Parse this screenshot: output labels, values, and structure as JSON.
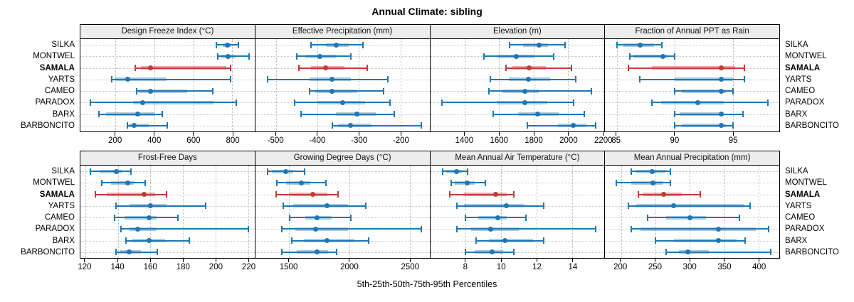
{
  "title": "Annual Climate: sibling",
  "caption": "5th-25th-50th-75th-95th Percentiles",
  "sites": [
    "SILKA",
    "MONTWEL",
    "SAMALA",
    "YARTS",
    "CAMEO",
    "PARADOX",
    "BARX",
    "BARBONCITO"
  ],
  "highlight_site": "SAMALA",
  "colors": {
    "series": "#1f77b4",
    "series_band": "rgba(31,119,180,0.38)",
    "highlight": "#c23b36",
    "highlight_band": "rgba(194,59,54,0.40)",
    "strip_bg": "#ededed",
    "grid": "#c4c4c4"
  },
  "chart_data": {
    "type": "dotplot-percentiles",
    "percentile_labels": [
      "5th",
      "25th",
      "50th",
      "75th",
      "95th"
    ],
    "panels": [
      {
        "title": "Design Freeze Index (°C)",
        "row": 1,
        "domain": [
          20,
          915
        ],
        "ticks": [
          200,
          400,
          600,
          800
        ],
        "values": {
          "SILKA": [
            720,
            750,
            775,
            795,
            830
          ],
          "MONTWEL": [
            725,
            745,
            777,
            815,
            888
          ],
          "SAMALA": [
            300,
            330,
            380,
            770,
            790
          ],
          "YARTS": [
            180,
            200,
            265,
            460,
            790
          ],
          "CAMEO": [
            310,
            320,
            380,
            570,
            700
          ],
          "PARADOX": [
            70,
            290,
            340,
            705,
            820
          ],
          "BARX": [
            115,
            150,
            315,
            400,
            440
          ],
          "BARBONCITO": [
            260,
            270,
            297,
            370,
            465
          ]
        }
      },
      {
        "title": "Effective Precipitation (mm)",
        "row": 1,
        "domain": [
          -550,
          -130
        ],
        "ticks": [
          -500,
          -400,
          -300,
          -200
        ],
        "values": {
          "SILKA": [
            -415,
            -380,
            -355,
            -325,
            -290
          ],
          "MONTWEL": [
            -450,
            -430,
            -395,
            -355,
            -320
          ],
          "SAMALA": [
            -445,
            -415,
            -380,
            -335,
            -280
          ],
          "YARTS": [
            -520,
            -420,
            -365,
            -320,
            -230
          ],
          "CAMEO": [
            -420,
            -405,
            -365,
            -305,
            -240
          ],
          "PARADOX": [
            -455,
            -400,
            -340,
            -285,
            -225
          ],
          "BARX": [
            -440,
            -355,
            -305,
            -260,
            -215
          ],
          "BARBONCITO": [
            -365,
            -350,
            -320,
            -270,
            -150
          ]
        }
      },
      {
        "title": "Elevation (m)",
        "row": 1,
        "domain": [
          1200,
          2210
        ],
        "ticks": [
          1400,
          1600,
          1800,
          2000,
          2200
        ],
        "values": {
          "SILKA": [
            1660,
            1740,
            1830,
            1885,
            1980
          ],
          "MONTWEL": [
            1510,
            1595,
            1700,
            1800,
            1915
          ],
          "SAMALA": [
            1640,
            1675,
            1775,
            1870,
            2020
          ],
          "YARTS": [
            1550,
            1655,
            1770,
            1895,
            2045
          ],
          "CAMEO": [
            1540,
            1620,
            1750,
            1830,
            2135
          ],
          "PARADOX": [
            1270,
            1585,
            1750,
            1880,
            2030
          ],
          "BARX": [
            1565,
            1710,
            1825,
            1945,
            2095
          ],
          "BARBONCITO": [
            1765,
            1940,
            2030,
            2105,
            2160
          ]
        }
      },
      {
        "title": "Fraction of Annual PPT as Rain",
        "row": 1,
        "domain": [
          84,
          99
        ],
        "ticks": [
          85,
          90,
          95
        ],
        "values": {
          "SILKA": [
            85,
            85.6,
            87,
            88.2,
            88.9
          ],
          "MONTWEL": [
            86.1,
            86.5,
            89,
            89.4,
            90
          ],
          "SAMALA": [
            86,
            88,
            94,
            95.2,
            96
          ],
          "YARTS": [
            87,
            90,
            94,
            95,
            96
          ],
          "CAMEO": [
            90,
            90.6,
            94,
            94.4,
            95
          ],
          "PARADOX": [
            88,
            88.8,
            92,
            94.2,
            98
          ],
          "BARX": [
            90,
            90.4,
            94,
            94.2,
            95.9
          ],
          "BARBONCITO": [
            90,
            90.6,
            94,
            94.4,
            95
          ]
        }
      },
      {
        "title": "Frost-Free Days",
        "row": 2,
        "domain": [
          117,
          224
        ],
        "ticks": [
          120,
          140,
          160,
          180,
          200,
          220
        ],
        "values": {
          "SILKA": [
            123,
            129,
            139,
            143,
            148
          ],
          "MONTWEL": [
            130,
            136,
            146,
            150,
            157
          ],
          "SAMALA": [
            126,
            133,
            156,
            163,
            170
          ],
          "YARTS": [
            139,
            147,
            160,
            170,
            194
          ],
          "CAMEO": [
            138,
            144,
            159,
            164,
            177
          ],
          "PARADOX": [
            142,
            147,
            152,
            164,
            220
          ],
          "BARX": [
            145,
            149,
            159,
            169,
            184
          ],
          "BARBONCITO": [
            139,
            141,
            147,
            154,
            164
          ]
        }
      },
      {
        "title": "Growing Degree Days (°C)",
        "row": 2,
        "domain": [
          1220,
          2665
        ],
        "ticks": [
          1500,
          2000,
          2500
        ],
        "values": {
          "SILKA": [
            1320,
            1355,
            1475,
            1535,
            1630
          ],
          "MONTWEL": [
            1400,
            1475,
            1600,
            1675,
            1805
          ],
          "SAMALA": [
            1395,
            1505,
            1695,
            1815,
            1905
          ],
          "YARTS": [
            1450,
            1535,
            1815,
            1990,
            2135
          ],
          "CAMEO": [
            1505,
            1635,
            1730,
            1855,
            2010
          ],
          "PARADOX": [
            1440,
            1555,
            1720,
            1990,
            2595
          ],
          "BARX": [
            1525,
            1625,
            1815,
            2040,
            2160
          ],
          "BARBONCITO": [
            1440,
            1565,
            1730,
            1825,
            1895
          ]
        }
      },
      {
        "title": "Mean Annual Air Temperature (°C)",
        "row": 2,
        "domain": [
          6,
          15.8
        ],
        "ticks": [
          8,
          10,
          12,
          14
        ],
        "values": {
          "SILKA": [
            6.7,
            6.9,
            7.5,
            7.8,
            8.1
          ],
          "MONTWEL": [
            7.2,
            7.4,
            8.1,
            8.5,
            9.1
          ],
          "SAMALA": [
            7.1,
            7.9,
            9.7,
            10.3,
            10.7
          ],
          "YARTS": [
            7.5,
            7.9,
            10.3,
            11.3,
            12.4
          ],
          "CAMEO": [
            8.0,
            8.7,
            9.8,
            10.3,
            11.4
          ],
          "PARADOX": [
            7.5,
            8.3,
            9.4,
            11.0,
            15.3
          ],
          "BARX": [
            8.6,
            9.3,
            10.2,
            11.8,
            12.4
          ],
          "BARBONCITO": [
            8.0,
            8.5,
            9.5,
            10.1,
            10.7
          ]
        }
      },
      {
        "title": "Mean Annual Precipitation (mm)",
        "row": 2,
        "domain": [
          177,
          430
        ],
        "ticks": [
          200,
          250,
          300,
          350,
          400
        ],
        "values": {
          "SILKA": [
            215,
            222,
            245,
            265,
            272
          ],
          "MONTWEL": [
            193,
            215,
            246,
            260,
            272
          ],
          "SAMALA": [
            225,
            232,
            262,
            288,
            315
          ],
          "YARTS": [
            211,
            222,
            277,
            378,
            388
          ],
          "CAMEO": [
            239,
            266,
            300,
            324,
            372
          ],
          "PARADOX": [
            215,
            228,
            342,
            396,
            414
          ],
          "BARX": [
            250,
            277,
            342,
            368,
            380
          ],
          "BARBONCITO": [
            266,
            284,
            297,
            328,
            418
          ]
        }
      }
    ]
  }
}
